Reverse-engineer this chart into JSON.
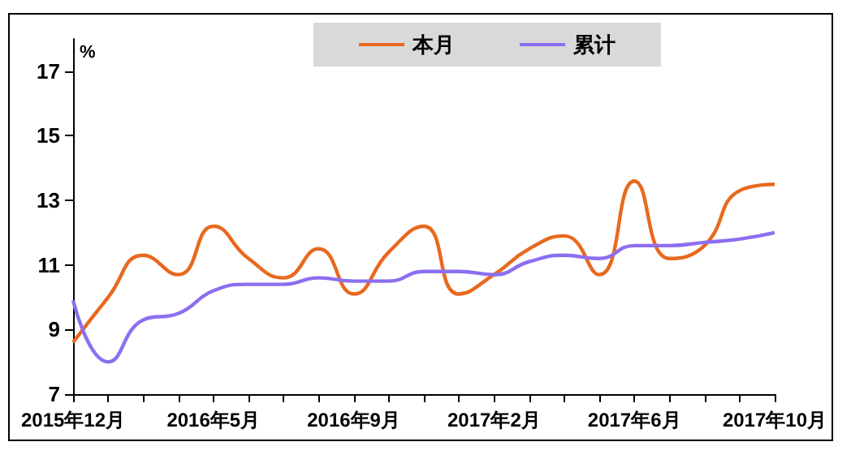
{
  "chart_data": {
    "type": "line",
    "ylabel": "%",
    "categories": [
      "2015年12月",
      null,
      null,
      null,
      "2016年5月",
      null,
      null,
      null,
      "2016年9月",
      null,
      null,
      null,
      "2017年2月",
      null,
      null,
      null,
      "2017年6月",
      null,
      null,
      null,
      "2017年10月"
    ],
    "series": [
      {
        "name": "本月",
        "color": "#e8691f",
        "values": [
          8.6,
          10.0,
          11.3,
          10.7,
          12.2,
          11.2,
          10.6,
          11.5,
          10.1,
          11.4,
          12.2,
          10.1,
          10.7,
          11.5,
          11.9,
          10.7,
          13.6,
          11.2,
          11.6,
          13.3,
          13.5
        ]
      },
      {
        "name": "累计",
        "color": "#8c6ff0",
        "values": [
          9.9,
          8.0,
          9.3,
          9.5,
          10.2,
          10.4,
          10.4,
          10.6,
          10.5,
          10.5,
          10.8,
          10.8,
          10.7,
          11.1,
          11.3,
          11.2,
          11.6,
          11.6,
          11.7,
          11.8,
          12.0
        ]
      }
    ],
    "ylim": [
      7,
      18
    ],
    "yticks": [
      7,
      9,
      11,
      13,
      15,
      17
    ],
    "grid": false,
    "legend": "top",
    "marker": "none",
    "line_style": "solid"
  }
}
